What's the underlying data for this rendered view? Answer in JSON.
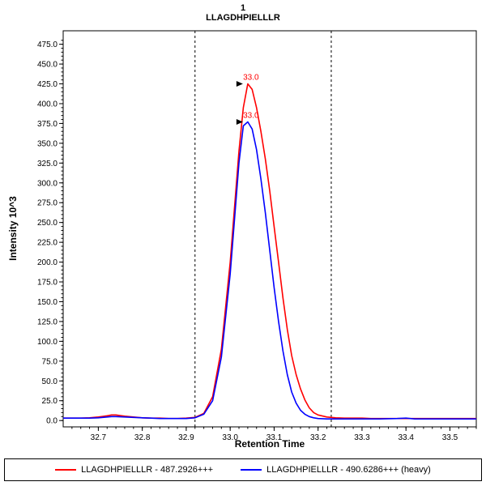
{
  "chart_data": {
    "type": "line",
    "title": "1",
    "subtitle": "LLAGDHPIELLLR",
    "xlabel": "Retention Time",
    "ylabel": "Intensity 10^3",
    "xlim": [
      32.62,
      33.56
    ],
    "ylim": [
      -8,
      492
    ],
    "x_ticks": [
      32.7,
      32.8,
      32.9,
      33.0,
      33.1,
      33.2,
      33.3,
      33.4,
      33.5
    ],
    "y_ticks": [
      0.0,
      25.0,
      50.0,
      75.0,
      100.0,
      125.0,
      150.0,
      175.0,
      200.0,
      225.0,
      250.0,
      275.0,
      300.0,
      325.0,
      350.0,
      375.0,
      400.0,
      425.0,
      450.0,
      475.0
    ],
    "grid": false,
    "legend_position": "bottom",
    "integration_boundaries": [
      32.92,
      33.23
    ],
    "series": [
      {
        "name": "LLAGDHPIELLLR - 487.2926+++",
        "color": "#ff0000",
        "points": [
          [
            32.62,
            3
          ],
          [
            32.64,
            3
          ],
          [
            32.66,
            3
          ],
          [
            32.68,
            3.5
          ],
          [
            32.7,
            4.5
          ],
          [
            32.72,
            6
          ],
          [
            32.73,
            7
          ],
          [
            32.74,
            7
          ],
          [
            32.76,
            5.5
          ],
          [
            32.78,
            4.5
          ],
          [
            32.8,
            3.5
          ],
          [
            32.82,
            3
          ],
          [
            32.84,
            3
          ],
          [
            32.86,
            2.5
          ],
          [
            32.88,
            2.5
          ],
          [
            32.9,
            3
          ],
          [
            32.92,
            4
          ],
          [
            32.94,
            9
          ],
          [
            32.96,
            30
          ],
          [
            32.98,
            90
          ],
          [
            33.0,
            200
          ],
          [
            33.01,
            270
          ],
          [
            33.02,
            340
          ],
          [
            33.03,
            395
          ],
          [
            33.04,
            425
          ],
          [
            33.05,
            418
          ],
          [
            33.06,
            395
          ],
          [
            33.07,
            365
          ],
          [
            33.08,
            330
          ],
          [
            33.09,
            290
          ],
          [
            33.1,
            245
          ],
          [
            33.11,
            200
          ],
          [
            33.12,
            155
          ],
          [
            33.13,
            115
          ],
          [
            33.14,
            82
          ],
          [
            33.15,
            58
          ],
          [
            33.16,
            40
          ],
          [
            33.17,
            26
          ],
          [
            33.18,
            16
          ],
          [
            33.19,
            10
          ],
          [
            33.2,
            7
          ],
          [
            33.22,
            4.5
          ],
          [
            33.24,
            3.5
          ],
          [
            33.26,
            3
          ],
          [
            33.28,
            3
          ],
          [
            33.3,
            3
          ],
          [
            33.32,
            2.5
          ],
          [
            33.34,
            2.5
          ],
          [
            33.36,
            2.5
          ],
          [
            33.38,
            2.5
          ],
          [
            33.4,
            2.5
          ],
          [
            33.44,
            2.5
          ],
          [
            33.48,
            2.5
          ],
          [
            33.52,
            2.5
          ],
          [
            33.56,
            2.5
          ]
        ]
      },
      {
        "name": "LLAGDHPIELLLR - 490.6286+++ (heavy)",
        "color": "#0000ff",
        "points": [
          [
            32.62,
            3
          ],
          [
            32.64,
            3
          ],
          [
            32.66,
            3
          ],
          [
            32.68,
            3
          ],
          [
            32.7,
            3.5
          ],
          [
            32.72,
            4.5
          ],
          [
            32.73,
            5
          ],
          [
            32.74,
            5
          ],
          [
            32.76,
            4.5
          ],
          [
            32.78,
            4
          ],
          [
            32.8,
            3.5
          ],
          [
            32.82,
            3
          ],
          [
            32.84,
            2.5
          ],
          [
            32.86,
            2.5
          ],
          [
            32.88,
            2.5
          ],
          [
            32.9,
            2.5
          ],
          [
            32.92,
            3.5
          ],
          [
            32.94,
            8
          ],
          [
            32.96,
            25
          ],
          [
            32.98,
            80
          ],
          [
            33.0,
            185
          ],
          [
            33.01,
            255
          ],
          [
            33.02,
            325
          ],
          [
            33.03,
            372
          ],
          [
            33.04,
            377
          ],
          [
            33.05,
            368
          ],
          [
            33.06,
            342
          ],
          [
            33.07,
            305
          ],
          [
            33.08,
            262
          ],
          [
            33.09,
            215
          ],
          [
            33.1,
            168
          ],
          [
            33.11,
            125
          ],
          [
            33.12,
            88
          ],
          [
            33.13,
            58
          ],
          [
            33.14,
            36
          ],
          [
            33.15,
            22
          ],
          [
            33.16,
            13
          ],
          [
            33.17,
            8
          ],
          [
            33.18,
            5
          ],
          [
            33.19,
            3.5
          ],
          [
            33.2,
            2.5
          ],
          [
            33.22,
            2
          ],
          [
            33.26,
            2
          ],
          [
            33.3,
            2
          ],
          [
            33.34,
            2
          ],
          [
            33.38,
            2.5
          ],
          [
            33.4,
            3
          ],
          [
            33.42,
            2
          ],
          [
            33.46,
            2
          ],
          [
            33.5,
            2
          ],
          [
            33.56,
            2
          ]
        ]
      }
    ],
    "annotations": [
      {
        "x": 33.04,
        "y": 425,
        "label": "33.0",
        "color": "#ff0000"
      },
      {
        "x": 33.04,
        "y": 377,
        "label": "33.0",
        "color": "#ff0000"
      }
    ]
  }
}
